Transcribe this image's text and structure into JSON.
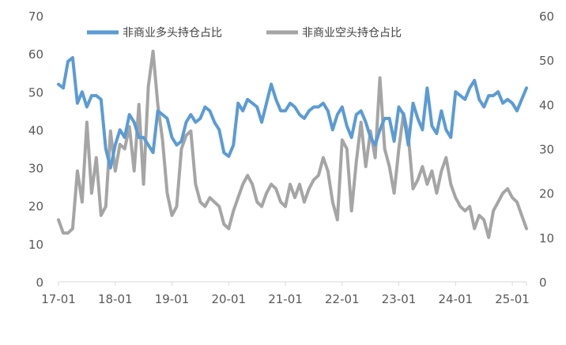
{
  "chart_data": {
    "type": "line",
    "legend": {
      "position": "top",
      "entries": [
        "非商业多头持仓占比",
        "非商业空头持仓占比"
      ]
    },
    "grid": false,
    "x_ticks": [
      "17-01",
      "18-01",
      "19-01",
      "20-01",
      "21-01",
      "22-01",
      "23-01",
      "24-01",
      "25-01"
    ],
    "x_range": [
      "17-01",
      "25-04"
    ],
    "y_left": {
      "ticks": [
        "0",
        "10",
        "20",
        "30",
        "40",
        "50",
        "60",
        "70"
      ],
      "lim": [
        0,
        70
      ]
    },
    "y_right": {
      "ticks": [
        "0",
        "10",
        "20",
        "30",
        "40",
        "50",
        "60"
      ],
      "lim": [
        0,
        60
      ]
    },
    "series": [
      {
        "name": "非商业多头持仓占比",
        "axis": "left",
        "color": "#5b9bd5",
        "x": [
          "17-01",
          "17-02",
          "17-03",
          "17-04",
          "17-05",
          "17-06",
          "17-07",
          "17-08",
          "17-09",
          "17-10",
          "17-11",
          "17-12",
          "18-01",
          "18-02",
          "18-03",
          "18-04",
          "18-05",
          "18-06",
          "18-07",
          "18-08",
          "18-09",
          "18-10",
          "18-11",
          "18-12",
          "19-01",
          "19-02",
          "19-03",
          "19-04",
          "19-05",
          "19-06",
          "19-07",
          "19-08",
          "19-09",
          "19-10",
          "19-11",
          "19-12",
          "20-01",
          "20-02",
          "20-03",
          "20-04",
          "20-05",
          "20-06",
          "20-07",
          "20-08",
          "20-09",
          "20-10",
          "20-11",
          "20-12",
          "21-01",
          "21-02",
          "21-03",
          "21-04",
          "21-05",
          "21-06",
          "21-07",
          "21-08",
          "21-09",
          "21-10",
          "21-11",
          "21-12",
          "22-01",
          "22-02",
          "22-03",
          "22-04",
          "22-05",
          "22-06",
          "22-07",
          "22-08",
          "22-09",
          "22-10",
          "22-11",
          "22-12",
          "23-01",
          "23-02",
          "23-03",
          "23-04",
          "23-05",
          "23-06",
          "23-07",
          "23-08",
          "23-09",
          "23-10",
          "23-11",
          "23-12",
          "24-01",
          "24-02",
          "24-03",
          "24-04",
          "24-05",
          "24-06",
          "24-07",
          "24-08",
          "24-09",
          "24-10",
          "24-11",
          "24-12",
          "25-01",
          "25-02",
          "25-03",
          "25-04"
        ],
        "values": [
          52,
          51,
          58,
          59,
          47,
          50,
          46,
          49,
          49,
          48,
          35,
          30,
          36,
          40,
          38,
          44,
          42,
          38,
          38,
          36,
          34,
          45,
          44,
          43,
          38,
          36,
          37,
          42,
          44,
          42,
          43,
          46,
          45,
          42,
          40,
          34,
          33,
          36,
          47,
          45,
          48,
          47,
          46,
          42,
          47,
          52,
          48,
          45,
          45,
          47,
          46,
          44,
          43,
          45,
          46,
          46,
          47,
          45,
          40,
          44,
          46,
          41,
          38,
          44,
          45,
          42,
          38,
          36,
          40,
          43,
          43,
          37,
          46,
          44,
          36,
          47,
          43,
          40,
          51,
          41,
          39,
          45,
          40,
          38,
          50,
          49,
          48,
          51,
          53,
          48,
          46,
          49,
          49,
          50,
          47,
          48,
          47,
          45,
          48,
          51
        ]
      },
      {
        "name": "非商业空头持仓占比",
        "axis": "right",
        "color": "#a5a5a5",
        "x": [
          "17-01",
          "17-02",
          "17-03",
          "17-04",
          "17-05",
          "17-06",
          "17-07",
          "17-08",
          "17-09",
          "17-10",
          "17-11",
          "17-12",
          "18-01",
          "18-02",
          "18-03",
          "18-04",
          "18-05",
          "18-06",
          "18-07",
          "18-08",
          "18-09",
          "18-10",
          "18-11",
          "18-12",
          "19-01",
          "19-02",
          "19-03",
          "19-04",
          "19-05",
          "19-06",
          "19-07",
          "19-08",
          "19-09",
          "19-10",
          "19-11",
          "19-12",
          "20-01",
          "20-02",
          "20-03",
          "20-04",
          "20-05",
          "20-06",
          "20-07",
          "20-08",
          "20-09",
          "20-10",
          "20-11",
          "20-12",
          "21-01",
          "21-02",
          "21-03",
          "21-04",
          "21-05",
          "21-06",
          "21-07",
          "21-08",
          "21-09",
          "21-10",
          "21-11",
          "21-12",
          "22-01",
          "22-02",
          "22-03",
          "22-04",
          "22-05",
          "22-06",
          "22-07",
          "22-08",
          "22-09",
          "22-10",
          "22-11",
          "22-12",
          "23-01",
          "23-02",
          "23-03",
          "23-04",
          "23-05",
          "23-06",
          "23-07",
          "23-08",
          "23-09",
          "23-10",
          "23-11",
          "23-12",
          "24-01",
          "24-02",
          "24-03",
          "24-04",
          "24-05",
          "24-06",
          "24-07",
          "24-08",
          "24-09",
          "24-10",
          "24-11",
          "24-12",
          "25-01",
          "25-02",
          "25-03",
          "25-04"
        ],
        "values": [
          14,
          11,
          11,
          12,
          25,
          18,
          36,
          20,
          28,
          15,
          17,
          34,
          25,
          31,
          30,
          35,
          25,
          40,
          22,
          44,
          52,
          40,
          32,
          20,
          15,
          17,
          30,
          33,
          34,
          22,
          18,
          17,
          19,
          18,
          17,
          13,
          12,
          16,
          19,
          22,
          24,
          22,
          18,
          17,
          20,
          22,
          21,
          18,
          17,
          22,
          19,
          22,
          18,
          21,
          23,
          24,
          28,
          25,
          18,
          14,
          32,
          30,
          16,
          27,
          36,
          26,
          34,
          28,
          46,
          30,
          26,
          20,
          30,
          38,
          33,
          21,
          23,
          26,
          22,
          25,
          20,
          25,
          28,
          22,
          19,
          17,
          16,
          17,
          12,
          15,
          14,
          10,
          16,
          18,
          20,
          21,
          19,
          18,
          15,
          12
        ]
      }
    ]
  }
}
